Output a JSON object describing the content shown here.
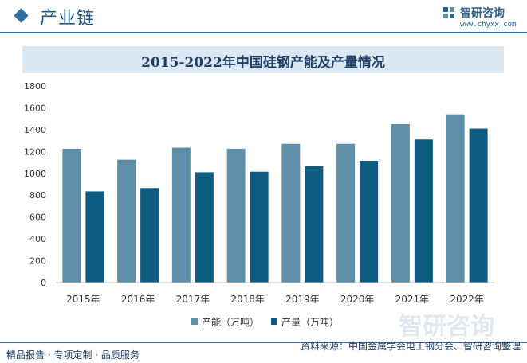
{
  "header": {
    "title": "产业链",
    "logo_name": "智研咨询",
    "logo_url": "www.chyxx.com"
  },
  "chart_data": {
    "type": "bar",
    "title": "2015-2022年中国硅钢产能及产量情况",
    "categories": [
      "2015年",
      "2016年",
      "2017年",
      "2018年",
      "2019年",
      "2020年",
      "2021年",
      "2022年"
    ],
    "series": [
      {
        "name": "产能（万吨）",
        "values": [
          1225,
          1125,
          1235,
          1225,
          1270,
          1270,
          1450,
          1540
        ],
        "color": "#5e8ea8"
      },
      {
        "name": "产量（万吨）",
        "values": [
          835,
          865,
          1010,
          1015,
          1065,
          1115,
          1310,
          1410
        ],
        "color": "#0e5d80"
      }
    ],
    "ylim": [
      0,
      1800
    ],
    "yticks": [
      0,
      200,
      400,
      600,
      800,
      1000,
      1200,
      1400,
      1600,
      1800
    ],
    "grid": false,
    "legend": "bottom-center"
  },
  "footer": {
    "left": "精品报告 · 专项定制 · 品质服务",
    "right": "资料来源：中国金属学会电工钢分会、智研咨询整理"
  },
  "watermark": {
    "text": "智研咨询"
  }
}
